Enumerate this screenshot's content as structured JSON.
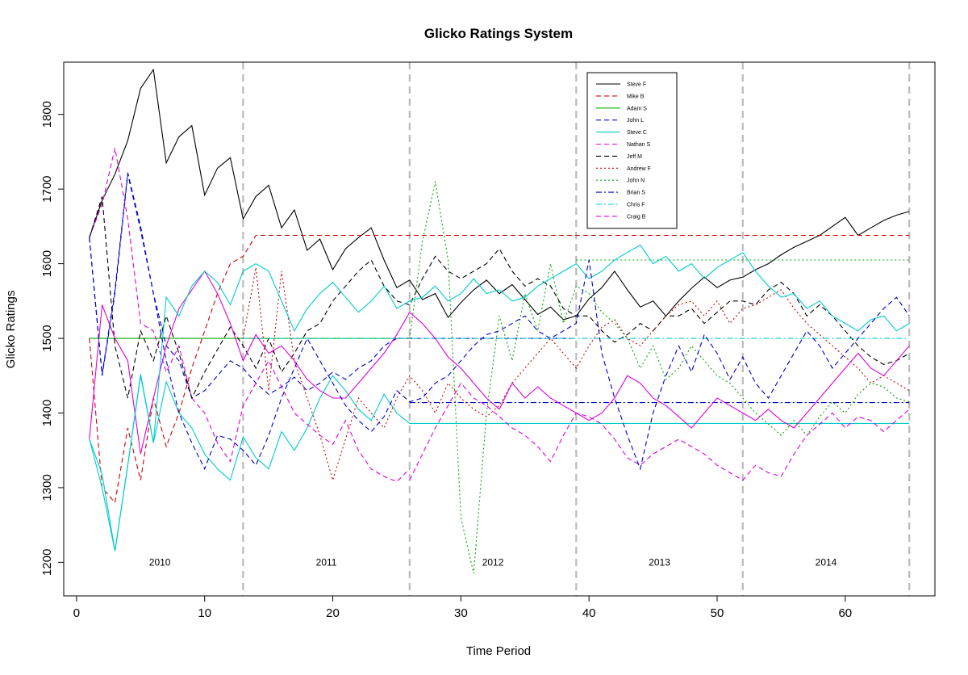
{
  "chart_data": {
    "type": "line",
    "title": "Glicko  Ratings System",
    "xlabel": "Time Period",
    "ylabel": "Glicko  Ratings",
    "xlim": [
      -1,
      67
    ],
    "ylim": [
      1155,
      1870
    ],
    "xticks": [
      0,
      10,
      20,
      30,
      40,
      50,
      60
    ],
    "yticks": [
      1200,
      1300,
      1400,
      1500,
      1600,
      1700,
      1800
    ],
    "grid": false,
    "legend_position": "top-right",
    "period_dividers": [
      13,
      26,
      39,
      52,
      65
    ],
    "period_labels": [
      {
        "label": "2010",
        "x": 6.5,
        "y": 1200
      },
      {
        "label": "2011",
        "x": 19.5,
        "y": 1200
      },
      {
        "label": "2012",
        "x": 32.5,
        "y": 1200
      },
      {
        "label": "2013",
        "x": 45.5,
        "y": 1200
      },
      {
        "label": "2014",
        "x": 58.5,
        "y": 1200
      }
    ],
    "series": [
      {
        "name": "Steve F",
        "color": "#000000",
        "dash": "solid",
        "x_start": 1,
        "values": [
          1635,
          1685,
          1720,
          1765,
          1835,
          1860,
          1735,
          1770,
          1785,
          1692,
          1728,
          1742,
          1660,
          1690,
          1705,
          1648,
          1672,
          1618,
          1633,
          1592,
          1620,
          1635,
          1648,
          1605,
          1568,
          1578,
          1552,
          1560,
          1528,
          1548,
          1565,
          1578,
          1560,
          1572,
          1552,
          1532,
          1542,
          1525,
          1530,
          1553,
          1568,
          1590,
          1565,
          1542,
          1550,
          1530,
          1550,
          1567,
          1582,
          1568,
          1578,
          1582,
          1592,
          1600,
          1612,
          1622,
          1630,
          1638,
          1650,
          1662,
          1638,
          1648,
          1658,
          1665,
          1670
        ]
      },
      {
        "name": "Mike B",
        "color": "#cc0000",
        "dash": "dashed",
        "x_start": 1,
        "values": [
          1500,
          1300,
          1280,
          1380,
          1310,
          1420,
          1355,
          1400,
          1460,
          1510,
          1560,
          1600,
          1610,
          1638,
          1638,
          1638,
          1638,
          1638,
          1638,
          1638,
          1638,
          1638,
          1638,
          1638,
          1638,
          1638,
          1638,
          1638,
          1638,
          1638,
          1638,
          1638,
          1638,
          1638,
          1638,
          1638,
          1638,
          1638,
          1638,
          1638,
          1638,
          1638,
          1638,
          1638,
          1638,
          1638,
          1638,
          1638,
          1638,
          1638,
          1638,
          1638,
          1638,
          1638,
          1638,
          1638,
          1638,
          1638,
          1638,
          1638,
          1638,
          1638,
          1638,
          1638,
          1638
        ]
      },
      {
        "name": "Adam S",
        "color": "#00aa00",
        "dash": "solid",
        "x_start": 1,
        "values": [
          1500,
          1500,
          1500,
          1500,
          1500,
          1500,
          1500,
          1500,
          1500,
          1500,
          1500,
          1500,
          1500,
          1500,
          1500,
          1500,
          1500,
          1500,
          1500,
          1500,
          1500,
          1500,
          1500,
          1500,
          1500,
          1500
        ]
      },
      {
        "name": "John L",
        "color": "#0000cc",
        "dash": "dashed",
        "x_start": 1,
        "values": [
          1635,
          1452,
          1565,
          1722,
          1650,
          1560,
          1490,
          1470,
          1420,
          1430,
          1450,
          1470,
          1460,
          1440,
          1425,
          1435,
          1448,
          1430,
          1440,
          1455,
          1445,
          1460,
          1470,
          1490,
          1500,
          1500,
          1500,
          1500,
          1500,
          1500,
          1500,
          1500,
          1500,
          1500,
          1500,
          1500,
          1500,
          1500,
          1500
        ]
      },
      {
        "name": "Steve C",
        "color": "#00cccc",
        "dash": "solid",
        "x_start": 1,
        "values": [
          1365,
          1318,
          1215,
          1330,
          1452,
          1360,
          1442,
          1400,
          1380,
          1345,
          1325,
          1310,
          1368,
          1340,
          1325,
          1375,
          1350,
          1380,
          1420,
          1450,
          1430,
          1405,
          1390,
          1425,
          1400,
          1386,
          1386,
          1386,
          1386,
          1386,
          1386,
          1386,
          1386,
          1386,
          1386,
          1386,
          1386,
          1386,
          1386,
          1386,
          1386,
          1386,
          1386,
          1386,
          1386,
          1386,
          1386,
          1386,
          1386,
          1386,
          1386,
          1386,
          1386,
          1386,
          1386,
          1386,
          1386,
          1386,
          1386,
          1386,
          1386,
          1386,
          1386,
          1386,
          1386
        ]
      },
      {
        "name": "Nathan S",
        "color": "#dd00dd",
        "dash": "dashed",
        "x_start": 1,
        "values": [
          1635,
          1680,
          1755,
          1660,
          1520,
          1510,
          1455,
          1490,
          1420,
          1400,
          1360,
          1335,
          1410,
          1440,
          1470,
          1435,
          1400,
          1385,
          1370,
          1358,
          1390,
          1350,
          1325,
          1315,
          1308,
          1325
        ]
      },
      {
        "name": "Jeff M",
        "color": "#000000",
        "dash": "dashed",
        "x_start": 1,
        "values": [
          1635,
          1690,
          1490,
          1420,
          1510,
          1470,
          1530,
          1480,
          1420,
          1455,
          1485,
          1515,
          1490,
          1460,
          1500,
          1455,
          1480,
          1510,
          1520,
          1550,
          1570,
          1590,
          1605,
          1570,
          1550,
          1545,
          1580,
          1610,
          1590,
          1580,
          1590,
          1600,
          1620,
          1590,
          1570,
          1580,
          1570,
          1540,
          1530,
          1530,
          1510,
          1495,
          1505,
          1520,
          1510,
          1530,
          1530,
          1540,
          1520,
          1535,
          1550,
          1550,
          1545,
          1565,
          1575,
          1560,
          1530,
          1545,
          1530,
          1510,
          1490,
          1475,
          1465,
          1470,
          1480
        ]
      },
      {
        "name": "Andrew F",
        "color": "#cc0000",
        "dash": "dotted",
        "x_start": 13,
        "values": [
          1500,
          1595,
          1430,
          1590,
          1470,
          1420,
          1370,
          1310,
          1365,
          1420,
          1400,
          1380,
          1420,
          1450,
          1430,
          1400,
          1440,
          1420,
          1405,
          1395,
          1410,
          1440,
          1460,
          1480,
          1500,
          1480,
          1460,
          1490,
          1515,
          1525,
          1500,
          1490,
          1510,
          1530,
          1545,
          1550,
          1530,
          1550,
          1520,
          1540,
          1545,
          1555,
          1565,
          1540,
          1520,
          1505,
          1490,
          1475,
          1460,
          1440,
          1450,
          1440,
          1430
        ]
      },
      {
        "name": "John N",
        "color": "#00aa00",
        "dash": "dotted",
        "x_start": 26,
        "values": [
          1500,
          1630,
          1710,
          1605,
          1260,
          1185,
          1400,
          1530,
          1470,
          1560,
          1510,
          1600,
          1520,
          1570,
          1560,
          1535,
          1520,
          1500,
          1460,
          1490,
          1445,
          1460,
          1490,
          1470,
          1450,
          1440,
          1420,
          1400,
          1385,
          1370,
          1390,
          1370,
          1395,
          1415,
          1400,
          1425,
          1440,
          1435,
          1420,
          1415
        ]
      },
      {
        "name": "Brian S",
        "color": "#0000cc",
        "dash": "dashdot",
        "x_start": 26,
        "values": [
          1414,
          1414,
          1414,
          1414,
          1414,
          1414,
          1414,
          1414,
          1414,
          1414,
          1414,
          1414,
          1414,
          1414,
          1414,
          1414,
          1414,
          1414,
          1414,
          1414,
          1414,
          1414,
          1414,
          1414,
          1414,
          1414,
          1414,
          1414,
          1414,
          1414,
          1414,
          1414,
          1414,
          1414,
          1414,
          1414,
          1414,
          1414,
          1414,
          1414
        ]
      },
      {
        "name": "Chris F",
        "color": "#00cccc",
        "dash": "dashdot",
        "x_start": 13,
        "values": [
          1500,
          1500,
          1500,
          1500,
          1500,
          1500,
          1500,
          1500,
          1500,
          1500,
          1500,
          1500,
          1500,
          1500,
          1500,
          1500,
          1500,
          1500,
          1500,
          1500,
          1500,
          1500,
          1500,
          1500,
          1500,
          1500,
          1500,
          1500,
          1500,
          1500,
          1500,
          1500,
          1500,
          1500,
          1500,
          1500,
          1500,
          1500,
          1500,
          1500,
          1500,
          1500,
          1500,
          1500,
          1500,
          1500,
          1500,
          1500,
          1500,
          1500,
          1500,
          1500,
          1500
        ]
      },
      {
        "name": "Craig B",
        "color": "#dd00dd",
        "dash": "dashed",
        "x_start": 26,
        "values": [
          1310,
          1345,
          1380,
          1410,
          1440,
          1420,
          1410,
          1395,
          1380,
          1370,
          1355,
          1335,
          1370,
          1400,
          1395,
          1385,
          1365,
          1340,
          1330,
          1345,
          1355,
          1365,
          1355,
          1345,
          1330,
          1320,
          1310,
          1330,
          1320,
          1315,
          1345,
          1370,
          1385,
          1400,
          1380,
          1395,
          1390,
          1375,
          1390,
          1405
        ]
      }
    ],
    "extra_series": [
      {
        "name": "Jeff M dotted green",
        "color": "#00aa00",
        "dash": "dotted",
        "x_start": 39,
        "values": [
          1605,
          1605,
          1605,
          1605,
          1605,
          1605,
          1605,
          1605,
          1605,
          1605,
          1605,
          1605,
          1605,
          1605,
          1605,
          1605,
          1605,
          1605,
          1605,
          1605,
          1605,
          1605,
          1605,
          1605,
          1605,
          1605,
          1605
        ]
      },
      {
        "name": "Magenta solid",
        "color": "#dd00dd",
        "dash": "solid",
        "x_start": 1,
        "values": [
          1365,
          1545,
          1500,
          1470,
          1345,
          1420,
          1490,
          1540,
          1565,
          1590,
          1560,
          1520,
          1470,
          1505,
          1480,
          1490,
          1470,
          1445,
          1430,
          1420,
          1420,
          1440,
          1460,
          1480,
          1505,
          1535,
          1520,
          1500,
          1475,
          1460,
          1440,
          1420,
          1405,
          1440,
          1420,
          1435,
          1420,
          1410,
          1400,
          1390,
          1400,
          1420,
          1450,
          1440,
          1420,
          1410,
          1395,
          1380,
          1400,
          1420,
          1410,
          1400,
          1390,
          1405,
          1390,
          1380,
          1400,
          1420,
          1440,
          1460,
          1480,
          1460,
          1450,
          1470,
          1490
        ]
      },
      {
        "name": "Cyan solid",
        "color": "#00cccc",
        "dash": "solid",
        "x_start": 1,
        "values": [
          1365,
          1300,
          1215,
          1330,
          1450,
          1360,
          1555,
          1530,
          1570,
          1590,
          1575,
          1545,
          1590,
          1600,
          1590,
          1550,
          1510,
          1540,
          1560,
          1575,
          1555,
          1535,
          1550,
          1570,
          1540,
          1550,
          1555,
          1570,
          1550,
          1560,
          1580,
          1560,
          1565,
          1550,
          1555,
          1570,
          1580,
          1590,
          1600,
          1580,
          1590,
          1605,
          1615,
          1625,
          1600,
          1610,
          1590,
          1600,
          1580,
          1595,
          1605,
          1615,
          1590,
          1570,
          1555,
          1560,
          1540,
          1550,
          1530,
          1520,
          1510,
          1525,
          1530,
          1510,
          1520
        ]
      },
      {
        "name": "Blue dashed late",
        "color": "#0000cc",
        "dash": "dashed",
        "x_start": 1,
        "values": [
          1635,
          1450,
          1560,
          1720,
          1645,
          1560,
          1470,
          1400,
          1360,
          1325,
          1370,
          1365,
          1350,
          1330,
          1370,
          1420,
          1460,
          1500,
          1470,
          1440,
          1410,
          1390,
          1375,
          1395,
          1430,
          1415,
          1420,
          1440,
          1450,
          1470,
          1490,
          1505,
          1510,
          1520,
          1530,
          1510,
          1500,
          1510,
          1520,
          1605,
          1480,
          1420,
          1370,
          1325,
          1400,
          1450,
          1490,
          1455,
          1505,
          1480,
          1445,
          1475,
          1440,
          1420,
          1450,
          1480,
          1510,
          1490,
          1460,
          1480,
          1500,
          1520,
          1540,
          1555,
          1530
        ]
      }
    ]
  }
}
